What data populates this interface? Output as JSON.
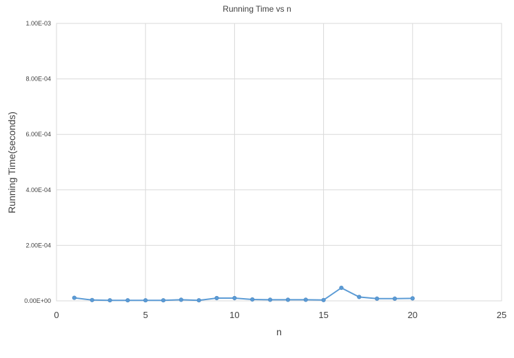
{
  "chart_data": {
    "type": "scatter",
    "title": "Running Time vs n",
    "xlabel": "n",
    "ylabel": "Running Time(seconds)",
    "xlim": [
      0,
      25
    ],
    "ylim": [
      0,
      0.001
    ],
    "x_ticks": [
      0,
      5,
      10,
      15,
      20,
      25
    ],
    "x_tick_labels": [
      "0",
      "5",
      "10",
      "15",
      "20",
      "25"
    ],
    "y_ticks": [
      0,
      0.0002,
      0.0004,
      0.0006,
      0.0008,
      0.001
    ],
    "y_tick_labels": [
      "0.00E+00",
      "2.00E-04",
      "4.00E-04",
      "6.00E-04",
      "8.00E-04",
      "1.00E-03"
    ],
    "grid": true,
    "legend": false,
    "series": [
      {
        "color": "#5b9bd5",
        "marker": "circle",
        "line": true,
        "x": [
          1,
          2,
          3,
          4,
          5,
          6,
          7,
          8,
          9,
          10,
          11,
          12,
          13,
          14,
          15,
          16,
          17,
          18,
          19,
          20
        ],
        "y": [
          1.1e-05,
          3e-06,
          2e-06,
          2e-06,
          2e-06,
          2e-06,
          4e-06,
          2e-06,
          1e-05,
          1e-05,
          5e-06,
          4e-06,
          4e-06,
          4e-06,
          3e-06,
          4.7e-05,
          1.4e-05,
          8e-06,
          8e-06,
          9e-06
        ]
      }
    ]
  }
}
